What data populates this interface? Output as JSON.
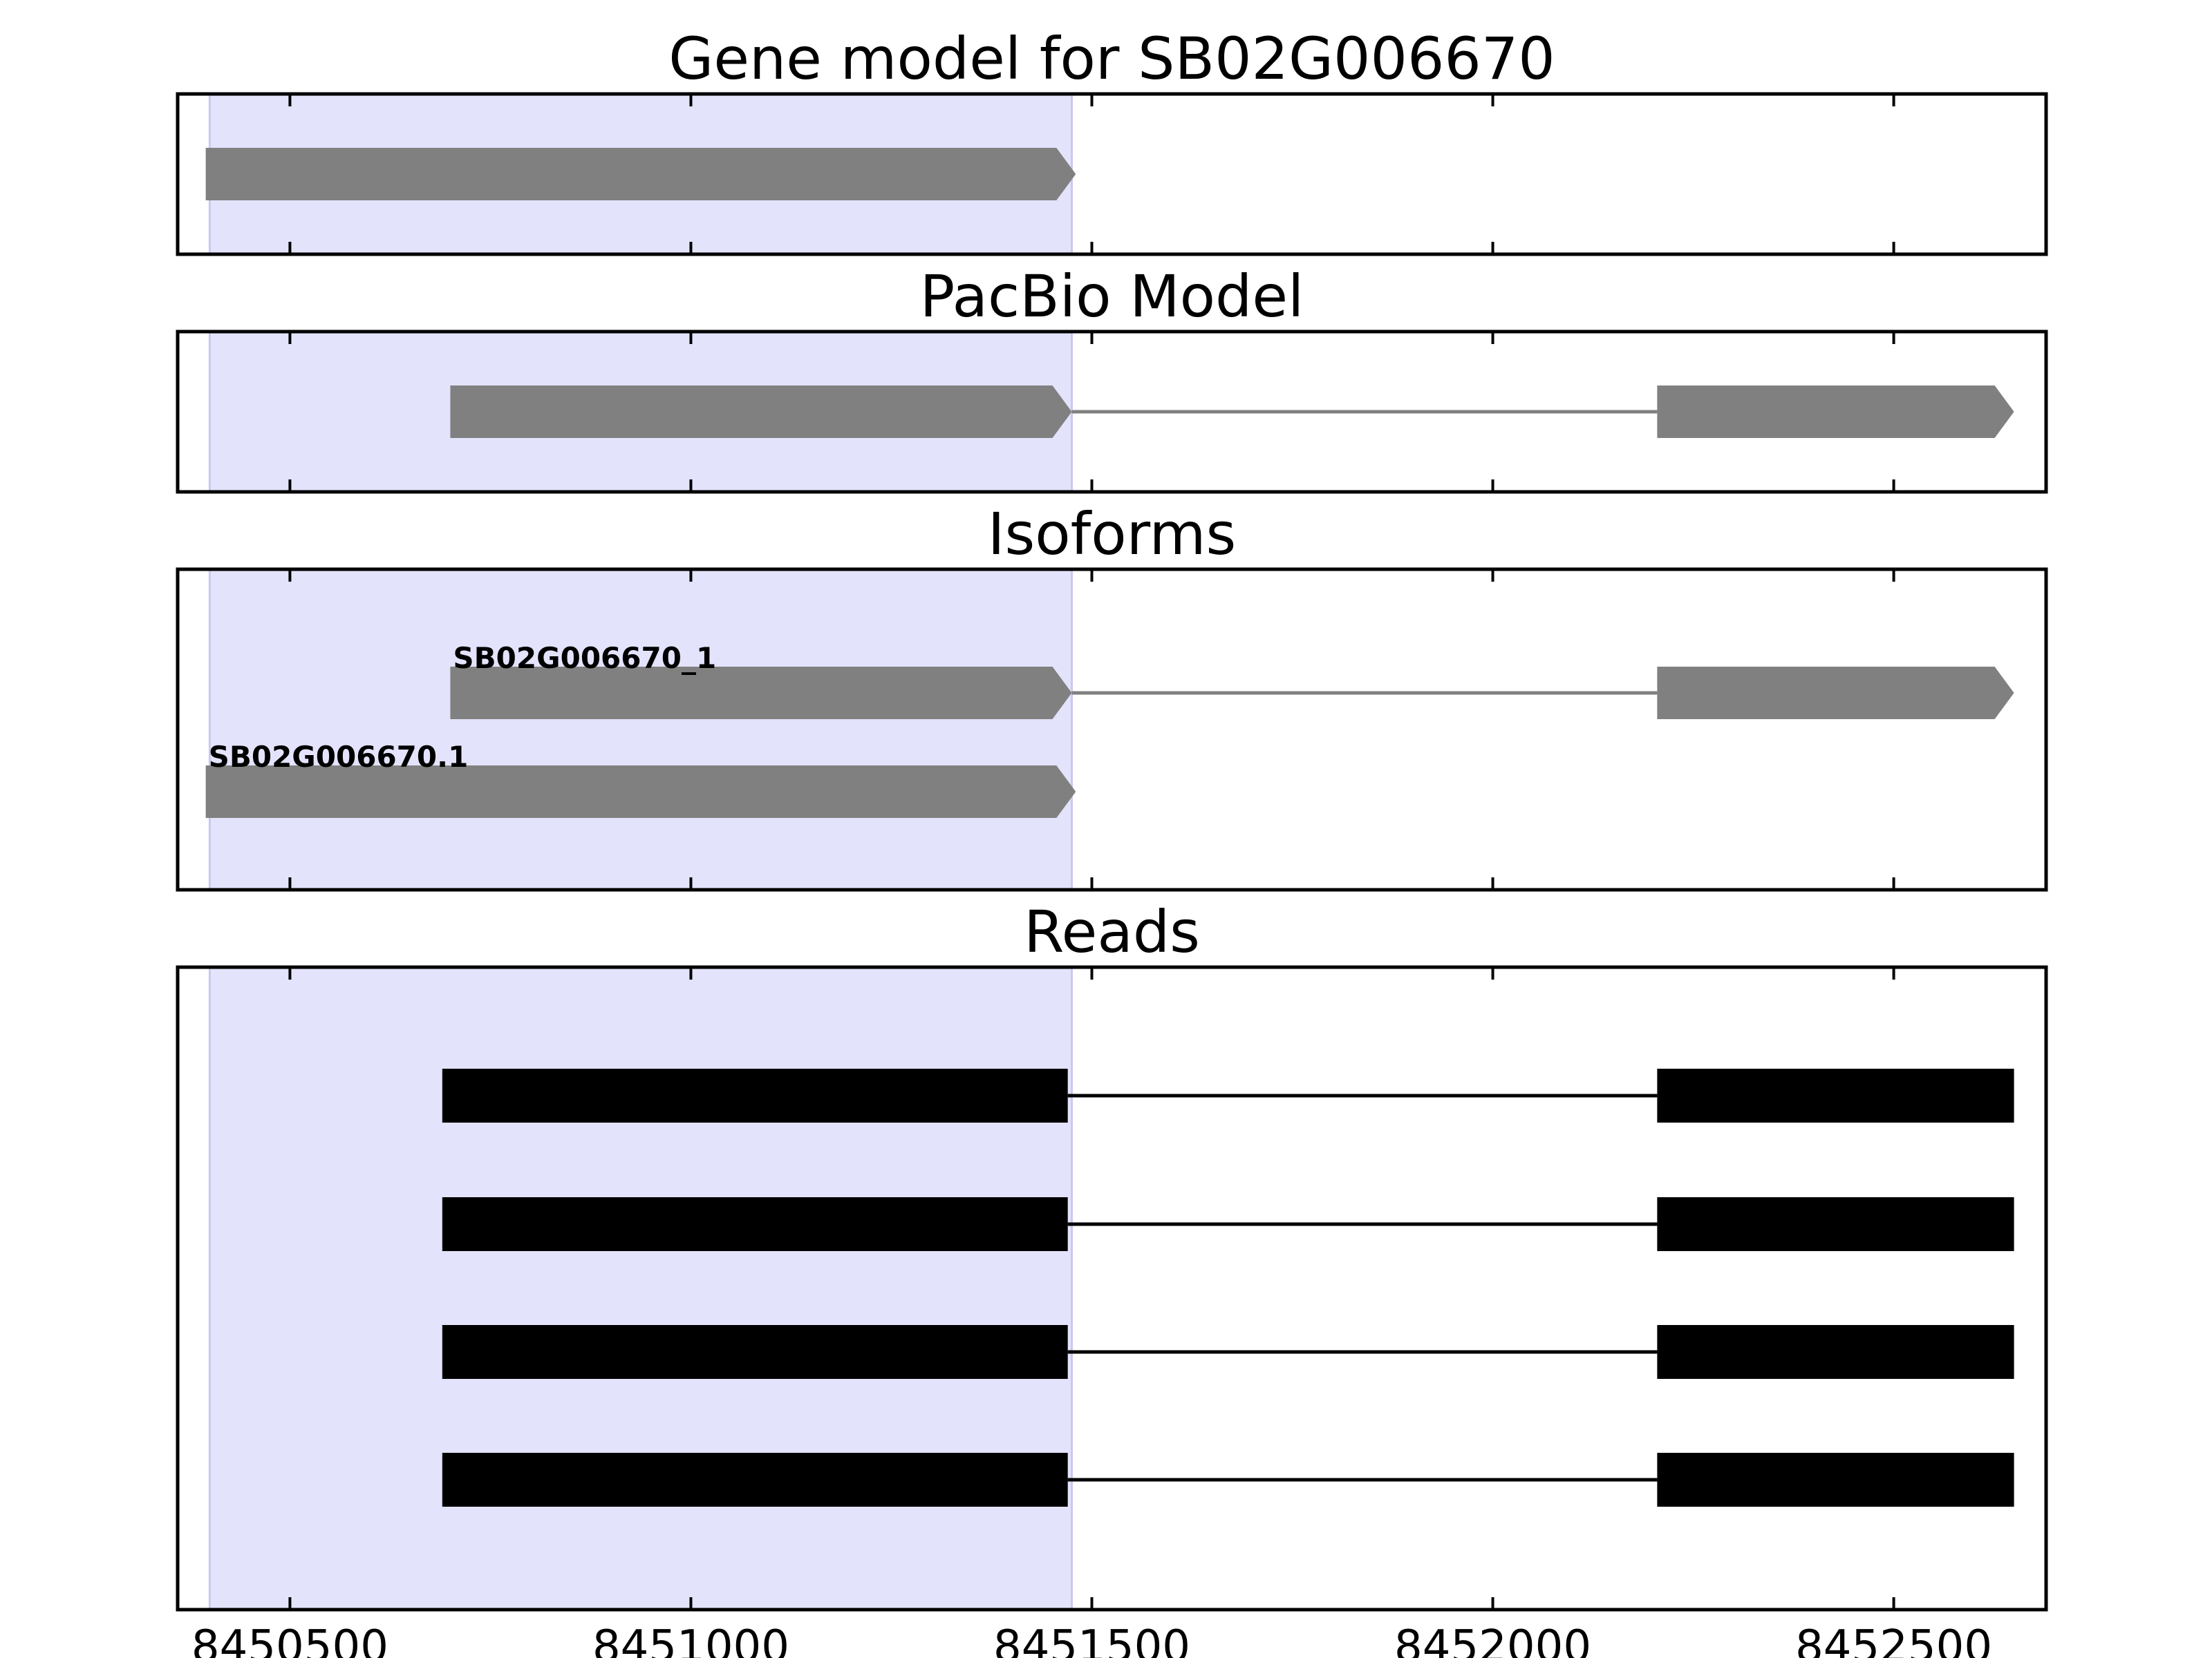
{
  "chart_data": {
    "type": "gene-track",
    "x_ticks": [
      8450500,
      8451000,
      8451500,
      8452000,
      8452500
    ],
    "xlim": [
      8450360,
      8452690
    ],
    "highlight_region": [
      8450400,
      8451475
    ],
    "panels": [
      {
        "title": "Gene model for SB02G006670",
        "tracks": [
          {
            "label": "",
            "color": "#808080",
            "strand": "+",
            "exons": [
              [
                8450395,
                8451480
              ]
            ]
          }
        ]
      },
      {
        "title": "PacBio Model",
        "tracks": [
          {
            "label": "",
            "color": "#808080",
            "strand": "+",
            "exons": [
              [
                8450700,
                8451475
              ],
              [
                8452205,
                8452650
              ]
            ]
          }
        ]
      },
      {
        "title": "Isoforms",
        "tracks": [
          {
            "label": "SB02G006670_1",
            "color": "#808080",
            "strand": "+",
            "exons": [
              [
                8450700,
                8451475
              ],
              [
                8452205,
                8452650
              ]
            ]
          },
          {
            "label": "SB02G006670.1",
            "color": "#808080",
            "strand": "+",
            "exons": [
              [
                8450395,
                8451480
              ]
            ]
          }
        ]
      },
      {
        "title": "Reads",
        "tracks": [
          {
            "label": "",
            "color": "#000000",
            "strand": "",
            "exons": [
              [
                8450690,
                8451470
              ],
              [
                8452205,
                8452650
              ]
            ]
          },
          {
            "label": "",
            "color": "#000000",
            "strand": "",
            "exons": [
              [
                8450690,
                8451470
              ],
              [
                8452205,
                8452650
              ]
            ]
          },
          {
            "label": "",
            "color": "#000000",
            "strand": "",
            "exons": [
              [
                8450690,
                8451470
              ],
              [
                8452205,
                8452650
              ]
            ]
          },
          {
            "label": "",
            "color": "#000000",
            "strand": "",
            "exons": [
              [
                8450690,
                8451470
              ],
              [
                8452205,
                8452650
              ]
            ]
          }
        ]
      }
    ],
    "highlight_color": "#e3e3fc",
    "background": "#ffffff"
  }
}
